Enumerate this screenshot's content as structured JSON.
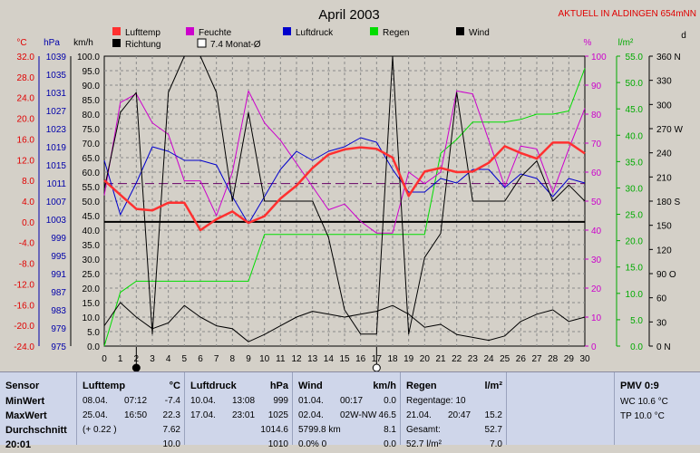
{
  "header": {
    "title": "April 2003",
    "station": "AKTUELL IN ALDINGEN 654mNN"
  },
  "legend": [
    {
      "label": "Lufttemp",
      "color": "#ff3030",
      "filled": true
    },
    {
      "label": "Feuchte",
      "color": "#cc00cc",
      "filled": true
    },
    {
      "label": "Luftdruck",
      "color": "#0000cc",
      "filled": true
    },
    {
      "label": "Regen",
      "color": "#00dd00",
      "filled": true
    },
    {
      "label": "Wind",
      "color": "#000000",
      "filled": true
    },
    {
      "label": "Richtung",
      "color": "#000000",
      "filled": true
    },
    {
      "label": "7.4 Monat-Ø",
      "color": "#660066",
      "filled": false
    }
  ],
  "axis_titles": {
    "temp": "°C",
    "pressure": "hPa",
    "wind": "km/h",
    "humidity": "%",
    "rain": "l/m²",
    "dir": "d"
  },
  "chart_data": {
    "type": "line",
    "title": "April 2003",
    "x": [
      0,
      1,
      2,
      3,
      4,
      5,
      6,
      7,
      8,
      9,
      10,
      11,
      12,
      13,
      14,
      15,
      16,
      17,
      18,
      19,
      20,
      21,
      22,
      23,
      24,
      25,
      26,
      27,
      28,
      29,
      30
    ],
    "x_range": [
      0,
      30
    ],
    "axes": {
      "temp": {
        "label": "°C",
        "range": [
          -24,
          32
        ],
        "ticks": [
          "32.0",
          "28.0",
          "24.0",
          "20.0",
          "16.0",
          "12.0",
          "8.0",
          "4.0",
          "0.0",
          "-4.0",
          "-8.0",
          "-12.0",
          "-16.0",
          "-20.0",
          "-24.0"
        ]
      },
      "pressure": {
        "label": "hPa",
        "range": [
          975,
          1039
        ],
        "ticks": [
          "1039",
          "1035",
          "1031",
          "1027",
          "1023",
          "1019",
          "1015",
          "1011",
          "1007",
          "1003",
          "999",
          "995",
          "991",
          "987",
          "983",
          "979",
          "975"
        ]
      },
      "wind": {
        "label": "km/h",
        "range": [
          0,
          100
        ],
        "ticks": [
          "100.0",
          "95.0",
          "90.0",
          "85.0",
          "80.0",
          "75.0",
          "70.0",
          "65.0",
          "60.0",
          "55.0",
          "50.0",
          "45.0",
          "40.0",
          "35.0",
          "30.0",
          "25.0",
          "20.0",
          "15.0",
          "10.0",
          "5.0",
          "0.0"
        ]
      },
      "humidity": {
        "label": "%",
        "range": [
          0,
          100
        ],
        "ticks": [
          "100",
          "90",
          "80",
          "70",
          "60",
          "50",
          "40",
          "30",
          "20",
          "10",
          "0"
        ]
      },
      "rain": {
        "label": "l/m²",
        "range": [
          0,
          55
        ],
        "ticks": [
          "55.0",
          "50.0",
          "45.0",
          "40.0",
          "35.0",
          "30.0",
          "25.0",
          "20.0",
          "15.0",
          "10.0",
          "5.0",
          "0.0"
        ]
      },
      "direction": {
        "label": "d",
        "range": [
          0,
          360
        ],
        "ticks": [
          "360 N",
          "330",
          "300",
          "270 W",
          "240",
          "210",
          "180 S",
          "150",
          "120",
          "90 O",
          "60",
          "30",
          "0 N"
        ]
      }
    },
    "series": [
      {
        "name": "Lufttemp",
        "axis": "temp",
        "color": "#ff3030",
        "width": 2.5,
        "values": [
          8.0,
          5.2,
          2.5,
          2.2,
          3.7,
          3.7,
          -1.6,
          0.5,
          2.0,
          -0.2,
          1.1,
          4.5,
          7.0,
          10.4,
          13.0,
          14.0,
          14.4,
          14.1,
          12.4,
          5.0,
          9.7,
          10.4,
          9.6,
          9.7,
          11.4,
          14.6,
          13.3,
          12.2,
          15.3,
          15.3,
          13.2
        ]
      },
      {
        "name": "Feuchte",
        "axis": "humidity",
        "color": "#cc00cc",
        "width": 1,
        "values": [
          52,
          84,
          87,
          77,
          73,
          57,
          57,
          45,
          60,
          88,
          77,
          71,
          63,
          55,
          47,
          49,
          43,
          39,
          39,
          60,
          56,
          60,
          88,
          87,
          71,
          55,
          69,
          68,
          53,
          68,
          82
        ]
      },
      {
        "name": "Luftdruck",
        "axis": "pressure",
        "color": "#0000cc",
        "width": 1,
        "values": [
          1016,
          1004,
          1011,
          1019,
          1018,
          1016,
          1016,
          1015,
          1008,
          1002,
          1008,
          1014,
          1018,
          1016,
          1018,
          1019,
          1021,
          1020,
          1014,
          1009,
          1009,
          1012,
          1011,
          1014,
          1014,
          1010,
          1013,
          1012,
          1008,
          1012,
          1011
        ]
      },
      {
        "name": "Regen",
        "axis": "rain",
        "color": "#00dd00",
        "width": 1,
        "values": [
          0.0,
          10.2,
          12.3,
          12.3,
          12.3,
          12.3,
          12.3,
          12.3,
          12.3,
          12.3,
          21.2,
          21.2,
          21.2,
          21.2,
          21.2,
          21.2,
          21.2,
          21.2,
          21.2,
          21.2,
          21.2,
          36.6,
          39.2,
          42.5,
          42.5,
          42.5,
          43.0,
          44.0,
          44.0,
          44.6,
          52.7
        ]
      },
      {
        "name": "Wind",
        "axis": "wind",
        "color": "#000000",
        "width": 1,
        "values": [
          7.0,
          15.0,
          10.0,
          6.0,
          8.0,
          14.0,
          10.0,
          7.0,
          6.0,
          1.5,
          4.0,
          7.0,
          10.0,
          12.0,
          11.0,
          10.0,
          11.0,
          12.0,
          14.0,
          11.0,
          6.5,
          7.5,
          4.0,
          3.0,
          2.0,
          3.5,
          8.5,
          11.0,
          12.5,
          8.5,
          10.0
        ]
      },
      {
        "name": "Richtung",
        "axis": "direction",
        "color": "#000000",
        "width": 1,
        "values": [
          195,
          290,
          315,
          15,
          315,
          360,
          360,
          315,
          180,
          290,
          180,
          180,
          180,
          180,
          135,
          45,
          15,
          15,
          360,
          15,
          110,
          140,
          315,
          180,
          180,
          180,
          210,
          230,
          180,
          200,
          180
        ]
      }
    ],
    "reference_lines": [
      {
        "label": "7.4 Monat-Ø",
        "axis": "temp",
        "value": 7.4,
        "color": "#660066",
        "style": "dashed"
      },
      {
        "label": "0 °C",
        "axis": "temp",
        "value": 0,
        "color": "#000000",
        "style": "solid"
      }
    ],
    "moon_markers": [
      {
        "day": 2,
        "phase": "new"
      },
      {
        "day": 17,
        "phase": "full"
      }
    ],
    "grid": true
  },
  "panel": {
    "sensor": {
      "head": "Sensor",
      "rows": [
        "MinWert",
        "MaxWert",
        "Durchschnitt",
        "20:01"
      ]
    },
    "temp": {
      "head": "Lufttemp",
      "unit": "°C",
      "rows": [
        [
          "08.04.",
          "07:12",
          "-7.4"
        ],
        [
          "25.04.",
          "16:50",
          "22.3"
        ],
        [
          "(+ 0.22 )",
          "",
          "7.62"
        ],
        [
          "",
          "",
          "10.0"
        ]
      ]
    },
    "press": {
      "head": "Luftdruck",
      "unit": "hPa",
      "rows": [
        [
          "10.04.",
          "13:08",
          "999"
        ],
        [
          "17.04.",
          "23:01",
          "1025"
        ],
        [
          "",
          "",
          "1014.6"
        ],
        [
          "",
          "",
          "1010"
        ]
      ]
    },
    "wind": {
      "head": "Wind",
      "unit": "km/h",
      "rows": [
        [
          "01.04.",
          "00:17",
          "0.0"
        ],
        [
          "02.04.",
          "02W-NW",
          "46.5"
        ],
        [
          "5799.8 km",
          "",
          "8.1"
        ],
        [
          "0.0% 0",
          "",
          "0.0"
        ]
      ]
    },
    "rain": {
      "head": "Regen",
      "unit": "l/m²",
      "rows": [
        [
          "Regentage: 10",
          "",
          ""
        ],
        [
          "21.04.",
          "20:47",
          "15.2"
        ],
        [
          "Gesamt:",
          "",
          "52.7"
        ],
        [
          "52.7 l/m²",
          "",
          "7.0"
        ]
      ]
    },
    "pmv": {
      "head": "PMV 0:9",
      "rows": [
        "WC 10.6 °C",
        "TP 10.0 °C"
      ]
    }
  }
}
